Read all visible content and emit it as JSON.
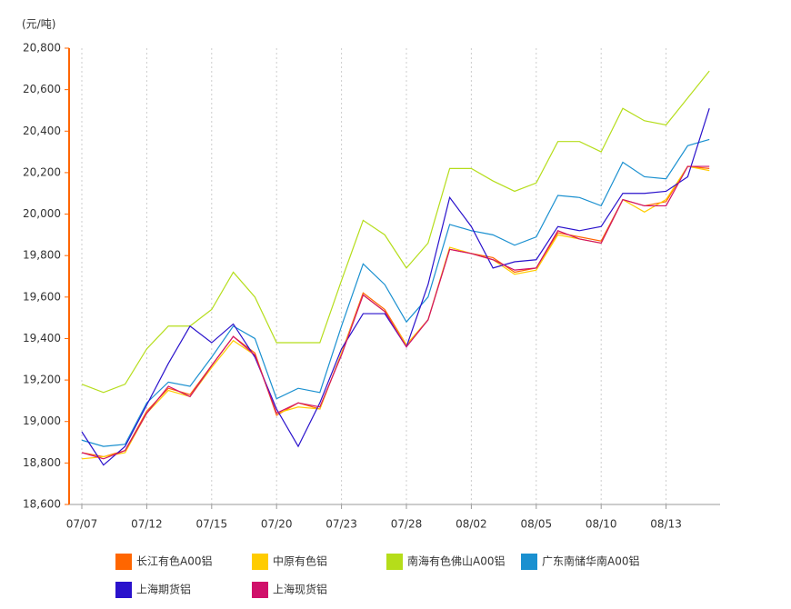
{
  "chart_data": {
    "type": "line",
    "y_unit_label": "(元/吨)",
    "categories": [
      "07/07",
      null,
      null,
      "07/12",
      null,
      null,
      "07/15",
      null,
      null,
      "07/20",
      null,
      null,
      "07/23",
      null,
      null,
      "07/28",
      null,
      null,
      "08/02",
      null,
      null,
      "08/05",
      null,
      null,
      "08/10",
      null,
      null,
      "08/13",
      null,
      null
    ],
    "ylim": [
      18600,
      20800
    ],
    "yticks": [
      {
        "value": 18600,
        "label": "18,600"
      },
      {
        "value": 18800,
        "label": "18,800"
      },
      {
        "value": 19000,
        "label": "19,000"
      },
      {
        "value": 19200,
        "label": "19,200"
      },
      {
        "value": 19400,
        "label": "19,400"
      },
      {
        "value": 19600,
        "label": "19,600"
      },
      {
        "value": 19800,
        "label": "19,800"
      },
      {
        "value": 20000,
        "label": "20,000"
      },
      {
        "value": 20200,
        "label": "20,200"
      },
      {
        "value": 20400,
        "label": "20,400"
      },
      {
        "value": 20600,
        "label": "20,600"
      },
      {
        "value": 20800,
        "label": "20,800"
      }
    ],
    "grid": true,
    "series": [
      {
        "name": "长江有色A00铝",
        "color": "#ff6600",
        "values": [
          18850,
          18830,
          18860,
          19050,
          19160,
          19130,
          19270,
          19410,
          19330,
          19030,
          19090,
          19060,
          19330,
          19620,
          19540,
          19370,
          19490,
          19830,
          19810,
          19790,
          19720,
          19740,
          19910,
          19890,
          19870,
          20070,
          20040,
          20060,
          20230,
          20220
        ]
      },
      {
        "name": "中原有色铝",
        "color": "#ffcc00",
        "values": [
          18820,
          18830,
          18850,
          19040,
          19150,
          19120,
          19260,
          19390,
          19320,
          19040,
          19070,
          19060,
          19330,
          19610,
          19530,
          19370,
          19490,
          19840,
          19810,
          19780,
          19710,
          19730,
          19900,
          19880,
          19860,
          20070,
          20010,
          20070,
          20230,
          20210
        ]
      },
      {
        "name": "南海有色佛山A00铝",
        "color": "#b5dd1a",
        "values": [
          19180,
          19140,
          19180,
          19350,
          19460,
          19460,
          19540,
          19720,
          19600,
          19380,
          19380,
          19380,
          19680,
          19970,
          19900,
          19740,
          19860,
          20220,
          20220,
          20160,
          20110,
          20150,
          20350,
          20350,
          20300,
          20510,
          20450,
          20430,
          20560,
          20690
        ]
      },
      {
        "name": "广东南储华南A00铝",
        "color": "#1a90d0",
        "values": [
          18910,
          18880,
          18890,
          19090,
          19190,
          19170,
          19310,
          19460,
          19400,
          19110,
          19160,
          19140,
          19460,
          19760,
          19660,
          19480,
          19600,
          19950,
          19920,
          19900,
          19850,
          19890,
          20090,
          20080,
          20040,
          20250,
          20180,
          20170,
          20330,
          20360
        ]
      },
      {
        "name": "上海期货铝",
        "color": "#2a12cc",
        "values": [
          18950,
          18790,
          18880,
          19080,
          19280,
          19460,
          19380,
          19470,
          19310,
          19060,
          18880,
          19090,
          19350,
          19520,
          19520,
          19360,
          19660,
          20080,
          19940,
          19740,
          19770,
          19780,
          19940,
          19920,
          19940,
          20100,
          20100,
          20110,
          20180,
          20510
        ]
      },
      {
        "name": "上海现货铝",
        "color": "#d0106a",
        "values": [
          18850,
          18820,
          18860,
          19040,
          19170,
          19120,
          19270,
          19410,
          19320,
          19040,
          19090,
          19070,
          19320,
          19610,
          19530,
          19360,
          19490,
          19830,
          19810,
          19780,
          19730,
          19740,
          19920,
          19880,
          19860,
          20070,
          20040,
          20040,
          20230,
          20230
        ]
      }
    ]
  }
}
